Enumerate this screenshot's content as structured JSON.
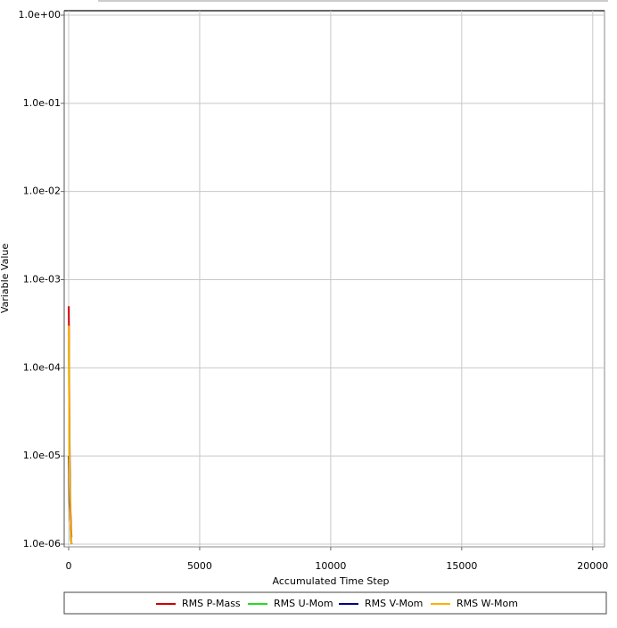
{
  "chart_data": {
    "type": "line",
    "y_label": "Variable Value",
    "x_label": "Accumulated Time Step",
    "x": [
      5,
      10,
      30,
      60,
      90,
      110
    ],
    "series": [
      {
        "name": "RMS P-Mass",
        "color": "#cc0000",
        "values": [
          0.0005,
          0.0003,
          2e-05,
          3e-06,
          1.5e-06,
          1.2e-06
        ]
      },
      {
        "name": "RMS U-Mom",
        "color": "#22dd22",
        "values": [
          0.0002,
          0.0001,
          1e-05,
          2e-06,
          1.1e-06,
          1e-06
        ]
      },
      {
        "name": "RMS V-Mom",
        "color": "#000080",
        "values": [
          1e-05,
          9e-06,
          3e-06,
          2e-06,
          1.2e-06,
          1e-06
        ]
      },
      {
        "name": "RMS W-Mom",
        "color": "#ffb000",
        "values": [
          0.0003,
          0.0001,
          6e-06,
          2e-06,
          1.3e-06,
          1e-06
        ]
      }
    ],
    "xlim": [
      -170,
      20450
    ],
    "xticks": [
      0,
      5000,
      10000,
      15000,
      20000
    ],
    "ylim": [
      1e-06,
      1
    ],
    "yticks": [
      {
        "value": 1,
        "label": "1.0e+00"
      },
      {
        "value": 0.1,
        "label": "1.0e-01"
      },
      {
        "value": 0.01,
        "label": "1.0e-02"
      },
      {
        "value": 0.001,
        "label": "1.0e-03"
      },
      {
        "value": 0.0001,
        "label": "1.0e-04"
      },
      {
        "value": 1e-05,
        "label": "1.0e-05"
      },
      {
        "value": 1e-06,
        "label": "1.0e-06"
      }
    ],
    "log_y": true,
    "grid": true
  }
}
